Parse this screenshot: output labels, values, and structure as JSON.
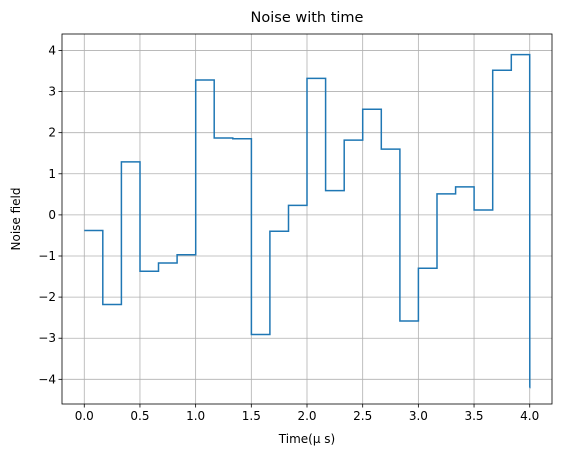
{
  "chart_data": {
    "type": "line",
    "title": "Noise with time",
    "xlabel": "Time($\\mu$ s)",
    "xlabel_display": "Time(μ s)",
    "ylabel": "Noise field",
    "xlim": [
      -0.2,
      4.2
    ],
    "ylim": [
      -4.6,
      4.4
    ],
    "xticks": [
      0.0,
      0.5,
      1.0,
      1.5,
      2.0,
      2.5,
      3.0,
      3.5,
      4.0
    ],
    "xtick_labels": [
      "0.0",
      "0.5",
      "1.0",
      "1.5",
      "2.0",
      "2.5",
      "3.0",
      "3.5",
      "4.0"
    ],
    "yticks": [
      -4,
      -3,
      -2,
      -1,
      0,
      1,
      2,
      3,
      4
    ],
    "ytick_labels": [
      "−4",
      "−3",
      "−2",
      "−1",
      "0",
      "1",
      "2",
      "3",
      "4"
    ],
    "grid": true,
    "line_color": "#1f77b4",
    "step_width": 0.1667,
    "step_values": [
      -0.38,
      -2.18,
      1.29,
      -1.37,
      -1.17,
      -0.97,
      3.28,
      1.87,
      1.85,
      -2.91,
      -0.4,
      0.23,
      3.32,
      0.59,
      1.82,
      2.57,
      1.6,
      -2.58,
      -1.3,
      0.51,
      0.68,
      0.12,
      3.52,
      3.9,
      -4.2
    ]
  }
}
